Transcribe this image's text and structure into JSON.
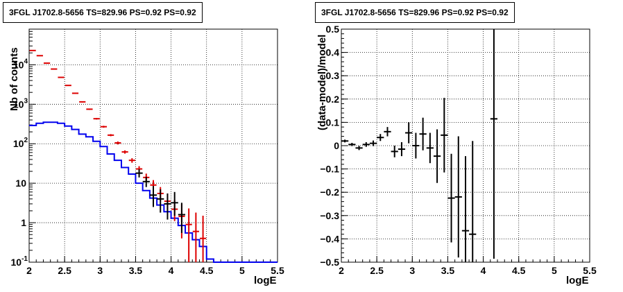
{
  "chart_data": [
    {
      "type": "line",
      "title": "3FGL J1702.8-5656 TS=829.96 PS=0.92 PS=0.92",
      "xlabel": "logE",
      "ylabel": "Nb of counts",
      "xlim": [
        2,
        5.5
      ],
      "ylim": [
        0.1,
        80000
      ],
      "yscale": "log",
      "grid": true,
      "x_ticks": [
        "2",
        "2.5",
        "3",
        "3.5",
        "4",
        "4.5",
        "5",
        "5.5"
      ],
      "y_ticks": [
        "10",
        "1",
        "10^-1"
      ],
      "y_ticks_dec": [
        {
          "value": 100,
          "mant": "10",
          "exp": "2"
        },
        {
          "value": 1000,
          "mant": "10",
          "exp": "3"
        },
        {
          "value": 10000,
          "mant": "10",
          "exp": "4"
        }
      ],
      "y_ticks_plain": [
        {
          "value": 10,
          "label": "10"
        },
        {
          "value": 1,
          "label": "1"
        },
        {
          "value": 0.1,
          "label": "10^-1"
        }
      ],
      "y_tick_labels": {
        "ten": "10",
        "one": "1",
        "tenth_mant": "10",
        "tenth_exp": "-1"
      },
      "bin_width": 0.1,
      "series": [
        {
          "role": "model",
          "color": "#0000ee",
          "x": [
            2.05,
            2.15,
            2.25,
            2.35,
            2.45,
            2.55,
            2.65,
            2.75,
            2.85,
            2.95,
            3.05,
            3.15,
            3.25,
            3.35,
            3.45,
            3.55,
            3.65,
            3.75,
            3.85,
            3.95,
            4.05,
            4.15,
            4.25,
            4.35,
            4.45,
            4.55,
            4.65,
            4.75,
            4.85,
            4.95,
            5.05,
            5.15,
            5.25,
            5.35,
            5.45
          ],
          "values": [
            290,
            330,
            350,
            350,
            330,
            280,
            230,
            175,
            150,
            115,
            85,
            55,
            38,
            25,
            17,
            10,
            6.5,
            4.2,
            2.8,
            1.9,
            1.3,
            0.85,
            0.55,
            0.37,
            0.25,
            0.12,
            0.1,
            0.1,
            0.1,
            0.1,
            0.1,
            0.1,
            0.1,
            0.1,
            0.1
          ]
        },
        {
          "role": "model-total",
          "color": "#dd0000",
          "x": [
            2.05,
            2.15,
            2.25,
            2.35,
            2.45,
            2.55,
            2.65,
            2.75,
            2.85,
            2.95,
            3.05,
            3.15,
            3.25,
            3.35,
            3.45,
            3.55,
            3.65,
            3.75,
            3.85,
            3.95,
            4.05,
            4.15,
            4.25,
            4.35,
            4.45
          ],
          "values": [
            23000,
            17000,
            11000,
            7800,
            4800,
            3000,
            1900,
            1150,
            750,
            430,
            270,
            165,
            105,
            62,
            38,
            23,
            14,
            9,
            5.5,
            3.5,
            2.2,
            1.45,
            0.9,
            0.6,
            0.4
          ],
          "err_low": [
            22600,
            16700,
            10800,
            7650,
            4700,
            2930,
            1850,
            1110,
            720,
            410,
            255,
            155,
            96,
            56,
            33,
            19,
            11,
            6.5,
            3.6,
            2.1,
            1.1,
            0.4,
            0.1,
            0.1,
            0.1
          ],
          "err_high": [
            23400,
            17300,
            11200,
            7950,
            4900,
            3070,
            1950,
            1190,
            780,
            450,
            285,
            175,
            114,
            68,
            43,
            27,
            17.5,
            12,
            8,
            5.5,
            3.8,
            3.0,
            2.3,
            1.8,
            1.5
          ]
        },
        {
          "role": "data",
          "color": "#000000",
          "x": [
            3.55,
            3.65,
            3.75,
            3.85,
            3.95,
            4.05,
            4.15
          ],
          "values": [
            18,
            11,
            5,
            4,
            3,
            3.2,
            1.6
          ],
          "err_low": [
            14,
            8,
            2.5,
            1.8,
            1.2,
            1.5,
            0.55
          ],
          "err_high": [
            22.5,
            14.5,
            8.5,
            7,
            5.5,
            6,
            3.2
          ]
        }
      ]
    },
    {
      "type": "scatter",
      "title": "3FGL J1702.8-5656 TS=829.96 PS=0.92 PS=0.92",
      "xlabel": "logE",
      "ylabel": "(data-model)/model",
      "xlim": [
        2,
        5.5
      ],
      "ylim": [
        -0.5,
        0.5
      ],
      "grid": true,
      "x_ticks": [
        "2",
        "2.5",
        "3",
        "3.5",
        "4",
        "4.5",
        "5",
        "5.5"
      ],
      "y_ticks": [
        "0.5",
        "0.4",
        "0.3",
        "0.2",
        "0.1",
        "0",
        "−0.1",
        "−0.2",
        "−0.3",
        "−0.4",
        "−0.5"
      ],
      "bin_width": 0.1,
      "x": [
        2.05,
        2.15,
        2.25,
        2.35,
        2.45,
        2.55,
        2.65,
        2.75,
        2.85,
        2.95,
        3.05,
        3.15,
        3.25,
        3.35,
        3.45,
        3.55,
        3.65,
        3.75,
        3.85,
        4.15
      ],
      "values": [
        0.02,
        0.005,
        -0.01,
        0.005,
        0.01,
        0.035,
        0.06,
        -0.025,
        -0.015,
        0.055,
        0.0,
        0.05,
        -0.01,
        -0.045,
        0.045,
        -0.225,
        -0.22,
        -0.365,
        -0.38,
        0.115
      ],
      "errors": [
        0.006,
        0.007,
        0.009,
        0.01,
        0.012,
        0.015,
        0.02,
        0.025,
        0.03,
        0.045,
        0.055,
        0.07,
        0.065,
        0.115,
        0.16,
        0.19,
        0.26,
        0.32,
        0.4,
        0.6
      ]
    }
  ]
}
